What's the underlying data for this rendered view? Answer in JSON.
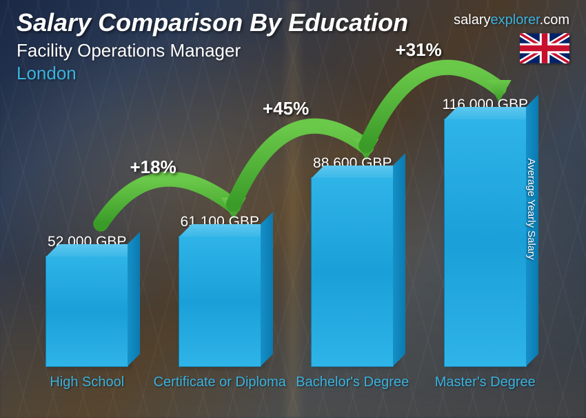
{
  "header": {
    "title": "Salary Comparison By Education",
    "subtitle": "Facility Operations Manager",
    "location": "London"
  },
  "brand": {
    "name1": "salary",
    "name2": "explorer",
    "tld": ".com"
  },
  "flag": {
    "country": "United Kingdom"
  },
  "yaxis_label": "Average Yearly Salary",
  "chart": {
    "type": "bar",
    "max_value": 116000,
    "bar_color": "#2fb4e8",
    "bar_top_color": "#5ec8f0",
    "bar_side_color": "#0a7ab0",
    "label_color": "#3bb3e0",
    "value_color": "#ffffff",
    "arrow_color": "#4caf50",
    "title_fontsize": 36,
    "subtitle_fontsize": 26,
    "value_fontsize": 21,
    "label_fontsize": 20,
    "arrow_label_fontsize": 26,
    "bars": [
      {
        "label": "High School",
        "value": 52000,
        "value_label": "52,000 GBP"
      },
      {
        "label": "Certificate or Diploma",
        "value": 61100,
        "value_label": "61,100 GBP"
      },
      {
        "label": "Bachelor's Degree",
        "value": 88600,
        "value_label": "88,600 GBP"
      },
      {
        "label": "Master's Degree",
        "value": 116000,
        "value_label": "116,000 GBP"
      }
    ],
    "arrows": [
      {
        "from": 0,
        "to": 1,
        "label": "+18%"
      },
      {
        "from": 1,
        "to": 2,
        "label": "+45%"
      },
      {
        "from": 2,
        "to": 3,
        "label": "+31%"
      }
    ]
  }
}
